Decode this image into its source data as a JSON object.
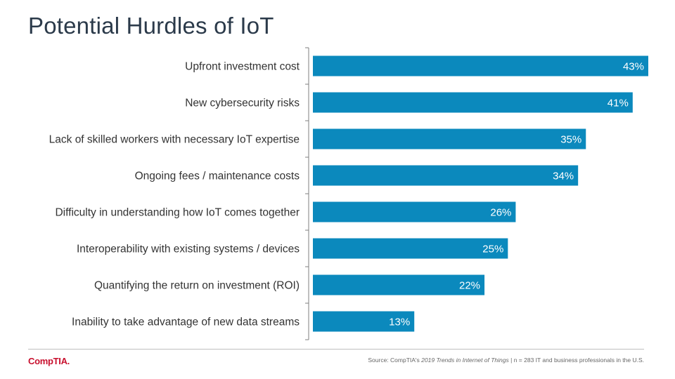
{
  "slide": {
    "title": "Potential Hurdles of IoT"
  },
  "footer": {
    "logo": "CompTIA.",
    "source_prefix": "Source: CompTIA's ",
    "source_report": "2019 Trends in Internet of Things",
    "source_suffix": " | n = 283 IT and business professionals in the U.S."
  },
  "colors": {
    "bar": "#0b89bd",
    "axis": "#7f7f7f",
    "logo": "#c8102e"
  },
  "chart_data": {
    "type": "bar",
    "orientation": "horizontal",
    "title": "",
    "categories": [
      "Upfront investment cost",
      "New cybersecurity risks",
      "Lack of skilled workers with necessary IoT expertise",
      "Ongoing fees / maintenance costs",
      "Difficulty in understanding how IoT comes together",
      "Interoperability with existing systems / devices",
      "Quantifying the return on investment (ROI)",
      "Inability to take advantage of new data streams"
    ],
    "values": [
      43,
      41,
      35,
      34,
      26,
      25,
      22,
      13
    ],
    "value_labels": [
      "43%",
      "41%",
      "35%",
      "34%",
      "26%",
      "25%",
      "22%",
      "13%"
    ],
    "xlim": [
      0,
      43
    ],
    "grid": false,
    "legend": "none"
  }
}
